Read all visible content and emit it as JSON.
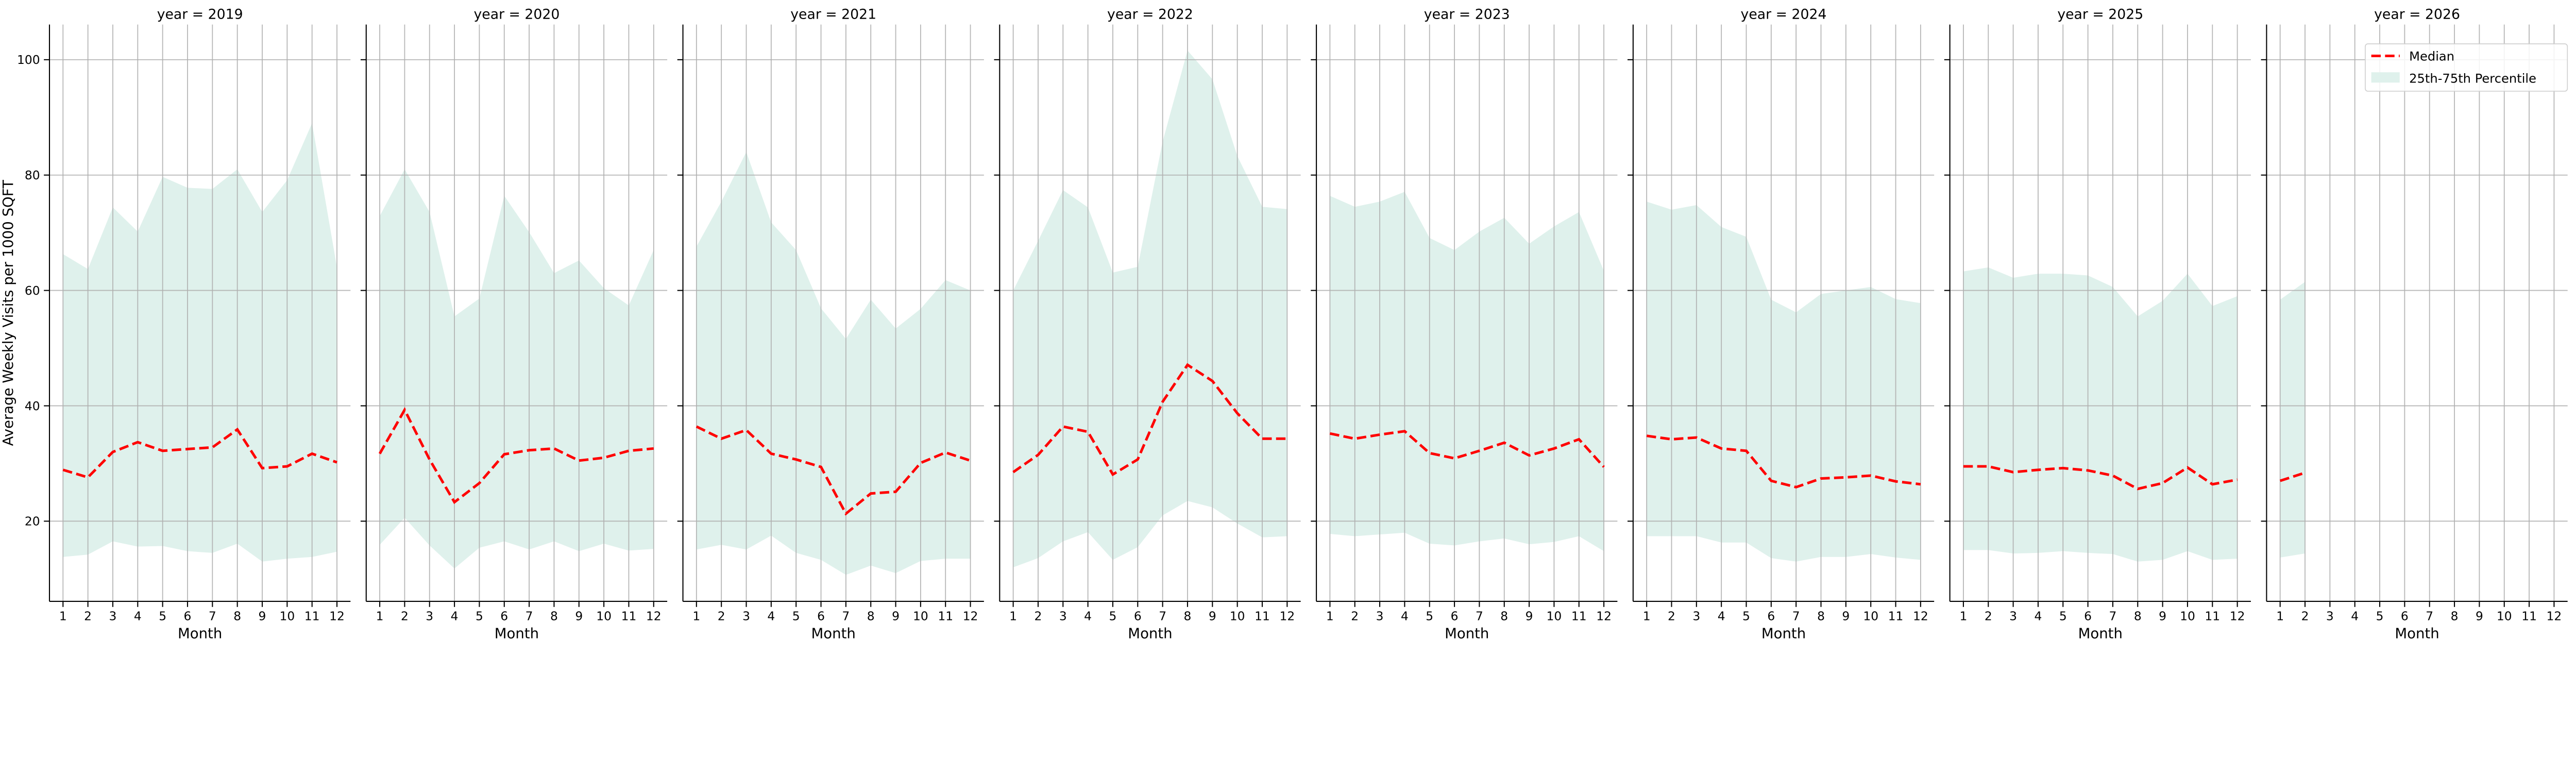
{
  "chart_data": {
    "type": "area",
    "ylabel": "Average Weekly Visits per 1000 SQFT",
    "xlabel": "Month",
    "ylim": [
      6.1,
      106.1
    ],
    "yticks": [
      20,
      40,
      60,
      80,
      100
    ],
    "xticks": [
      1,
      2,
      3,
      4,
      5,
      6,
      7,
      8,
      9,
      10,
      11,
      12
    ],
    "grid": true,
    "legend": {
      "placement": "top-right",
      "entries": [
        "Median",
        "25th-75th Percentile"
      ]
    },
    "colors": {
      "median": "#ff0000",
      "band": "#dff1ec",
      "grid": "#b0b0b0"
    },
    "facet_title_prefix": "year = ",
    "facets": [
      {
        "year": "2019",
        "median": [
          28.9,
          27.6,
          32.0,
          33.7,
          32.2,
          32.5,
          32.8,
          35.9,
          29.2,
          29.5,
          31.7,
          30.2
        ],
        "p75": [
          66.3,
          63.7,
          74.4,
          70.2,
          79.7,
          77.8,
          77.6,
          81.0,
          73.6,
          79.1,
          89.0,
          64.0
        ],
        "p25": [
          13.8,
          14.2,
          16.5,
          15.6,
          15.7,
          14.8,
          14.5,
          16.1,
          13.0,
          13.5,
          13.8,
          14.7
        ]
      },
      {
        "year": "2020",
        "median": [
          31.7,
          39.3,
          30.7,
          23.3,
          26.6,
          31.6,
          32.3,
          32.6,
          30.5,
          31.0,
          32.2,
          32.6
        ],
        "p75": [
          72.9,
          81.0,
          73.6,
          55.5,
          58.6,
          76.4,
          70.1,
          63.0,
          65.2,
          60.4,
          57.4,
          67.0
        ],
        "p25": [
          15.9,
          20.6,
          15.8,
          11.8,
          15.4,
          16.5,
          15.1,
          16.5,
          14.8,
          16.1,
          14.9,
          15.2
        ]
      },
      {
        "year": "2021",
        "median": [
          36.4,
          34.3,
          35.8,
          31.7,
          30.7,
          29.4,
          21.3,
          24.8,
          25.1,
          30.1,
          31.9,
          30.5
        ],
        "p75": [
          67.6,
          75.4,
          84.0,
          71.8,
          67.0,
          56.9,
          51.6,
          58.4,
          53.4,
          56.8,
          61.8,
          60.0
        ],
        "p25": [
          15.1,
          15.9,
          15.1,
          17.5,
          14.5,
          13.3,
          10.7,
          12.3,
          11.0,
          13.1,
          13.5,
          13.5
        ]
      },
      {
        "year": "2022",
        "median": [
          28.5,
          31.5,
          36.4,
          35.5,
          28.1,
          30.7,
          40.7,
          47.1,
          44.3,
          38.7,
          34.3,
          34.3
        ],
        "p75": [
          60.0,
          68.6,
          77.4,
          74.4,
          63.1,
          64.1,
          85.8,
          101.6,
          96.6,
          83.3,
          74.5,
          74.1
        ],
        "p25": [
          12.0,
          13.6,
          16.5,
          18.1,
          13.3,
          15.5,
          21.0,
          23.5,
          22.4,
          19.6,
          17.2,
          17.4
        ]
      },
      {
        "year": "2023",
        "median": [
          35.2,
          34.3,
          35.0,
          35.6,
          31.8,
          30.9,
          32.2,
          33.6,
          31.4,
          32.6,
          34.2,
          29.4
        ],
        "p75": [
          76.4,
          74.5,
          75.4,
          77.1,
          69.1,
          67.0,
          70.2,
          72.6,
          68.1,
          71.1,
          73.6,
          63.4
        ],
        "p25": [
          17.8,
          17.4,
          17.7,
          18.0,
          16.1,
          15.8,
          16.5,
          17.0,
          16.0,
          16.4,
          17.4,
          14.8
        ]
      },
      {
        "year": "2024",
        "median": [
          34.8,
          34.2,
          34.5,
          32.6,
          32.2,
          27.0,
          25.9,
          27.4,
          27.6,
          27.9,
          26.9,
          26.4
        ],
        "p75": [
          75.4,
          74.0,
          74.8,
          71.0,
          69.3,
          58.4,
          56.2,
          59.4,
          60.0,
          60.6,
          58.5,
          57.8
        ],
        "p25": [
          17.4,
          17.4,
          17.4,
          16.3,
          16.3,
          13.6,
          13.0,
          13.8,
          13.8,
          14.3,
          13.7,
          13.3
        ]
      },
      {
        "year": "2025",
        "median": [
          29.5,
          29.5,
          28.5,
          28.9,
          29.2,
          28.8,
          27.9,
          25.6,
          26.6,
          29.3,
          26.4,
          27.2
        ],
        "p75": [
          63.3,
          64.0,
          62.2,
          62.9,
          62.9,
          62.6,
          60.6,
          55.5,
          58.2,
          62.9,
          57.3,
          59.0
        ],
        "p25": [
          15.0,
          15.0,
          14.4,
          14.5,
          14.8,
          14.5,
          14.3,
          13.0,
          13.3,
          14.8,
          13.3,
          13.5
        ]
      },
      {
        "year": "2026",
        "median": [
          27.0,
          28.4
        ],
        "p75": [
          58.4,
          61.5
        ],
        "p25": [
          13.7,
          14.4
        ]
      }
    ]
  }
}
